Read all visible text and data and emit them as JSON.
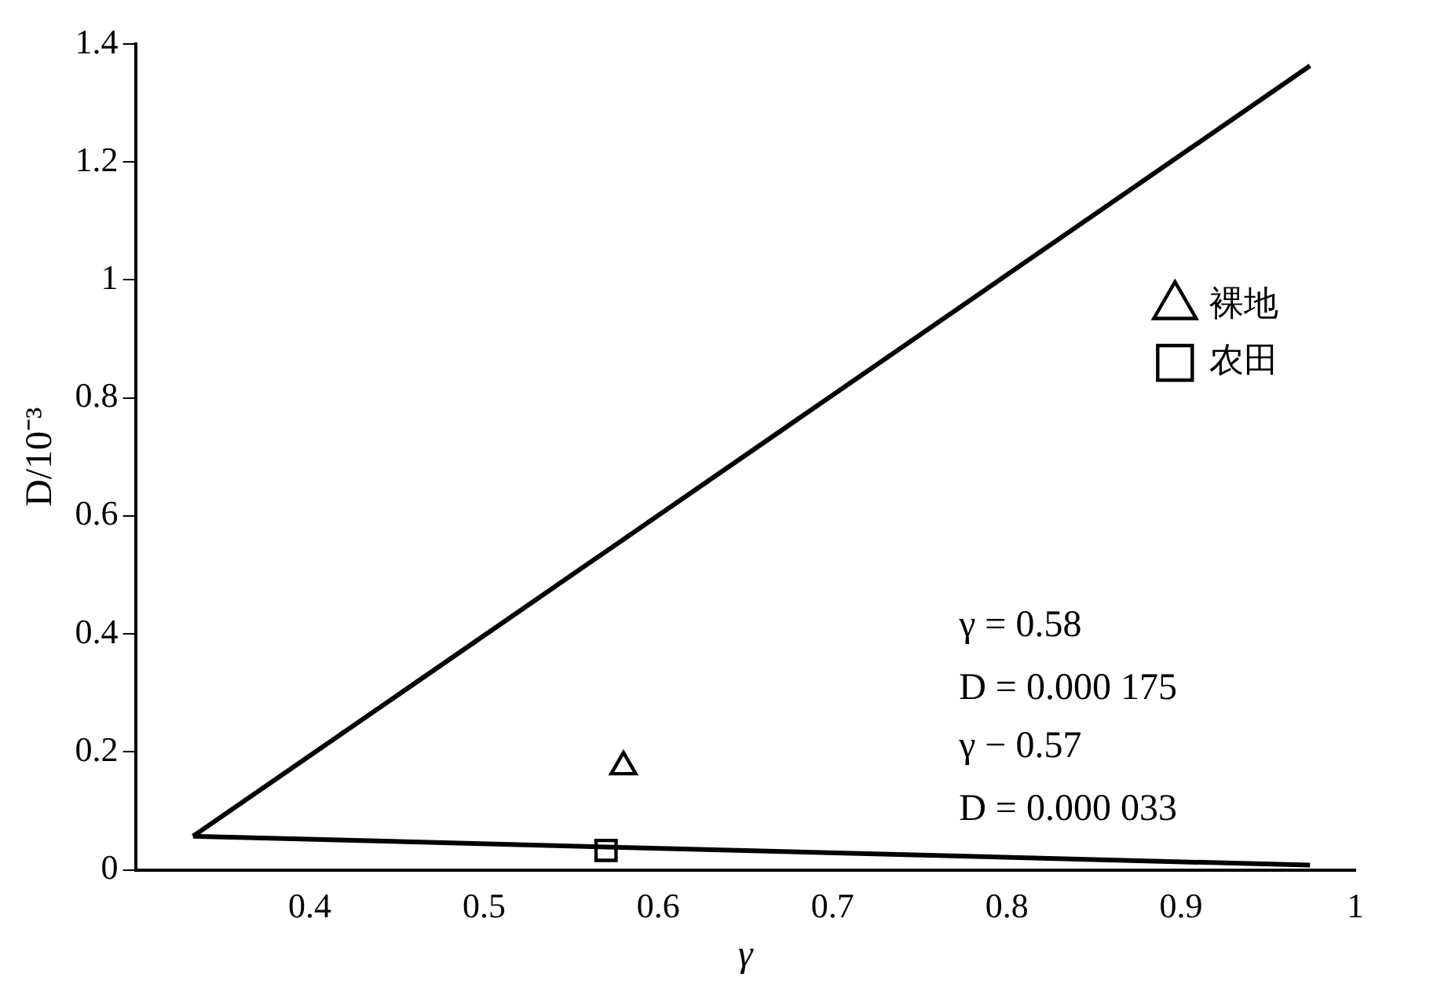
{
  "chart_data": {
    "type": "line",
    "xlabel": "γ",
    "ylabel": "D/10⁻³",
    "xlim": [
      0.3,
      1
    ],
    "xticks": [
      0.4,
      0.5,
      0.6,
      0.7,
      0.8,
      0.9,
      1
    ],
    "ylim": [
      0,
      1.4
    ],
    "yticks": [
      0,
      0.2,
      0.4,
      0.6,
      0.8,
      1,
      1.2,
      1.4
    ],
    "grid": false,
    "legend": "right",
    "series": [
      {
        "color": "#000000",
        "x": [
          0.333,
          0.974
        ],
        "values": [
          0.057,
          1.363
        ],
        "marker": "none"
      },
      {
        "color": "#000000",
        "x": [
          0.333,
          0.974
        ],
        "values": [
          0.057,
          0.008
        ],
        "marker": "none"
      },
      {
        "type": "scatter",
        "name": "裸地",
        "color": "#000000",
        "x": [
          0.58
        ],
        "values": [
          0.175
        ],
        "marker": "triangle"
      },
      {
        "type": "scatter",
        "name": "农田",
        "color": "#000000",
        "x": [
          0.57
        ],
        "values": [
          0.033
        ],
        "marker": "square"
      }
    ],
    "annotations": [
      "γ = 0.58",
      "D = 0.000 175",
      "γ − 0.57",
      "D = 0.000 033"
    ]
  }
}
